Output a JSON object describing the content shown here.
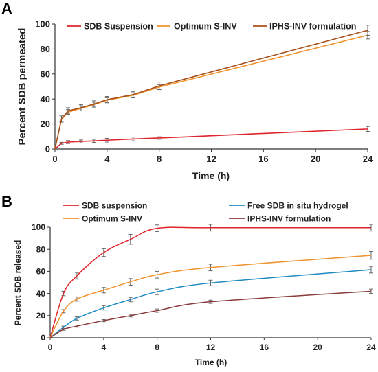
{
  "chart_data": [
    {
      "panel_label": "A",
      "type": "line",
      "title": "",
      "xlabel": "Time (h)",
      "ylabel": "Percent SDB permeated",
      "xlim": [
        0,
        24
      ],
      "ylim": [
        0,
        100
      ],
      "xticks": [
        0,
        4,
        8,
        12,
        16,
        20,
        24
      ],
      "yticks": [
        0,
        20,
        40,
        60,
        80,
        100
      ],
      "grid": false,
      "legend_placement": "top",
      "series": [
        {
          "name": "SDB Suspension",
          "color": "#e0242b",
          "x": [
            0,
            0.5,
            1,
            2,
            3,
            4,
            6,
            8,
            24
          ],
          "y": [
            0,
            4.5,
            5.5,
            6.0,
            6.5,
            7.0,
            8.0,
            8.8,
            16.0
          ],
          "err": [
            0,
            0.8,
            1.2,
            1.2,
            1.3,
            1.5,
            1.5,
            1.0,
            2.0
          ]
        },
        {
          "name": "Optimum S-INV",
          "color": "#f0922b",
          "x": [
            0,
            0.5,
            1,
            2,
            3,
            4,
            6,
            8,
            24
          ],
          "y": [
            0,
            23.5,
            29.5,
            32.5,
            35.5,
            39.0,
            43.0,
            49.5,
            91.0
          ],
          "err": [
            0,
            2.0,
            2.0,
            2.0,
            2.0,
            2.0,
            2.0,
            2.0,
            3.0
          ]
        },
        {
          "name": "IPHS-INV formulation",
          "color": "#a8501c",
          "x": [
            0,
            0.5,
            1,
            2,
            3,
            4,
            6,
            8,
            24
          ],
          "y": [
            0,
            24.0,
            30.5,
            33.0,
            36.0,
            39.5,
            43.5,
            50.5,
            95.0
          ],
          "err": [
            0,
            2.5,
            2.5,
            2.5,
            2.5,
            2.5,
            2.5,
            3.0,
            4.0
          ]
        }
      ]
    },
    {
      "panel_label": "B",
      "type": "line",
      "title": "",
      "xlabel": "Time (h)",
      "ylabel": "Percent SDB released",
      "xlim": [
        0,
        24
      ],
      "ylim": [
        0,
        100
      ],
      "xticks": [
        0,
        4,
        8,
        12,
        16,
        20,
        24
      ],
      "yticks": [
        0,
        20,
        40,
        60,
        80,
        100
      ],
      "grid": false,
      "legend_placement": "top",
      "series": [
        {
          "name": "SDB suspension",
          "color": "#e0242b",
          "x": [
            0,
            1,
            2,
            4,
            6,
            8,
            12,
            24
          ],
          "y": [
            0,
            40.0,
            56.0,
            77.0,
            89.0,
            99.0,
            99.5,
            99.5
          ],
          "err": [
            0,
            2.0,
            3.0,
            3.5,
            4.5,
            3.0,
            3.0,
            3.0
          ]
        },
        {
          "name": "Free SDB in situ hydrogel",
          "color": "#1f8ac0",
          "x": [
            0,
            1,
            2,
            4,
            6,
            8,
            12,
            24
          ],
          "y": [
            0,
            9.5,
            17.5,
            27.0,
            34.5,
            41.5,
            49.5,
            61.5
          ],
          "err": [
            0,
            1.0,
            1.5,
            2.0,
            2.0,
            2.5,
            2.5,
            3.0
          ]
        },
        {
          "name": "Optimum S-INV",
          "color": "#f0922b",
          "x": [
            0,
            1,
            2,
            4,
            6,
            8,
            12,
            24
          ],
          "y": [
            0,
            24.0,
            35.0,
            43.0,
            50.5,
            57.0,
            63.5,
            74.5
          ],
          "err": [
            0,
            1.5,
            2.0,
            2.5,
            3.0,
            3.0,
            3.0,
            3.5
          ]
        },
        {
          "name": "IPHS-INV formulation",
          "color": "#8b3a3a",
          "x": [
            0,
            1,
            2,
            4,
            6,
            8,
            12,
            24
          ],
          "y": [
            0,
            7.5,
            10.5,
            15.5,
            20.0,
            24.5,
            32.5,
            42.0
          ],
          "err": [
            0,
            0.8,
            1.0,
            1.0,
            1.2,
            1.5,
            1.5,
            2.0
          ]
        }
      ]
    }
  ]
}
